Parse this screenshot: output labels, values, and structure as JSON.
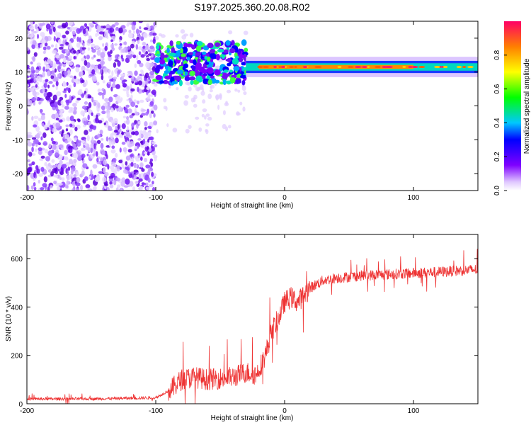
{
  "title": "S197.2025.360.20.08.R02",
  "chart_data": [
    {
      "type": "heatmap",
      "name": "spectrogram",
      "xlabel": "Height of straight line (km)",
      "ylabel": "Frequency (Hz)",
      "xlim": [
        -200,
        150
      ],
      "ylim": [
        -25,
        25
      ],
      "xticks": [
        -200,
        -100,
        0,
        100
      ],
      "yticks": [
        -20,
        -10,
        0,
        10,
        20
      ],
      "colorbar": {
        "label": "Normalized spectral amplitude",
        "range": [
          0,
          1
        ],
        "ticks": [
          "0.0",
          "0.2",
          "0.4",
          "0.6",
          "0.8"
        ]
      },
      "features": {
        "noise_region_x": [
          -200,
          -100
        ],
        "signal_line_hz": 11.5
      }
    },
    {
      "type": "line",
      "name": "snr",
      "xlabel": "Height of straight line (km)",
      "ylabel": "SNR (10 * v/v)",
      "xlim": [
        -200,
        150
      ],
      "ylim": [
        0,
        700
      ],
      "xticks": [
        -200,
        -100,
        0,
        100
      ],
      "yticks": [
        0,
        200,
        400,
        600
      ],
      "color": "#ee3333",
      "series": [
        {
          "name": "SNR",
          "x": [
            -200,
            -150,
            -100,
            -88,
            -80,
            -70,
            -60,
            -50,
            -40,
            -30,
            -22,
            -15,
            -10,
            -5,
            0,
            5,
            10,
            20,
            30,
            40,
            60,
            80,
            100,
            120,
            150
          ],
          "values": [
            20,
            20,
            25,
            60,
            100,
            110,
            100,
            105,
            110,
            130,
            120,
            200,
            300,
            350,
            420,
            440,
            420,
            480,
            510,
            520,
            530,
            535,
            540,
            545,
            555
          ]
        }
      ]
    }
  ]
}
